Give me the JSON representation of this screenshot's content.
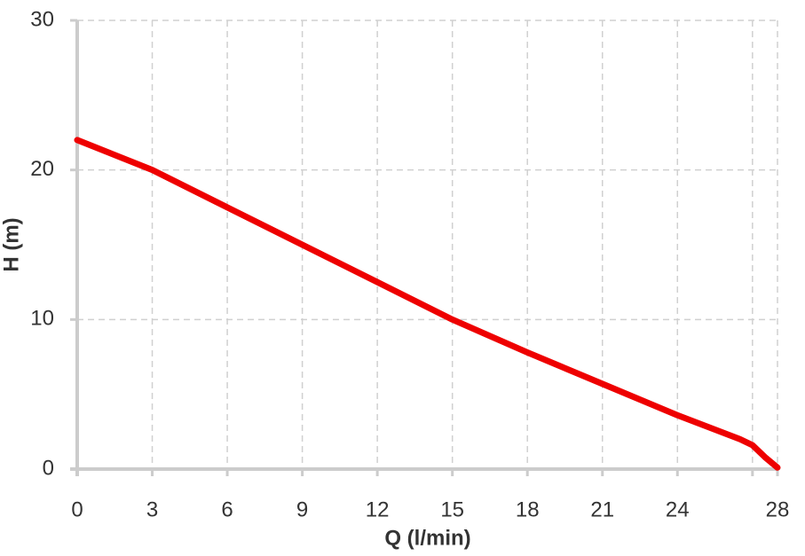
{
  "chart_data": {
    "type": "line",
    "x_label": "Q (l/min)",
    "y_label": "H (m)",
    "x": [
      0,
      3,
      6,
      9,
      12,
      15,
      18,
      21,
      24,
      26.5,
      27,
      27.5,
      28
    ],
    "series": [
      {
        "name": "H",
        "color": "#ee0000",
        "values": [
          22,
          20,
          17.5,
          15,
          12.5,
          10,
          7.8,
          5.7,
          3.6,
          2,
          1.6,
          0.8,
          0.1
        ]
      }
    ],
    "xlim": [
      0,
      28
    ],
    "xticks": [
      0,
      3,
      6,
      9,
      12,
      15,
      18,
      21,
      24,
      {
        "value": 27,
        "label": null
      },
      28
    ],
    "ylim": [
      0,
      30
    ],
    "yticks": [
      0,
      10,
      20,
      30
    ],
    "grid": true
  }
}
